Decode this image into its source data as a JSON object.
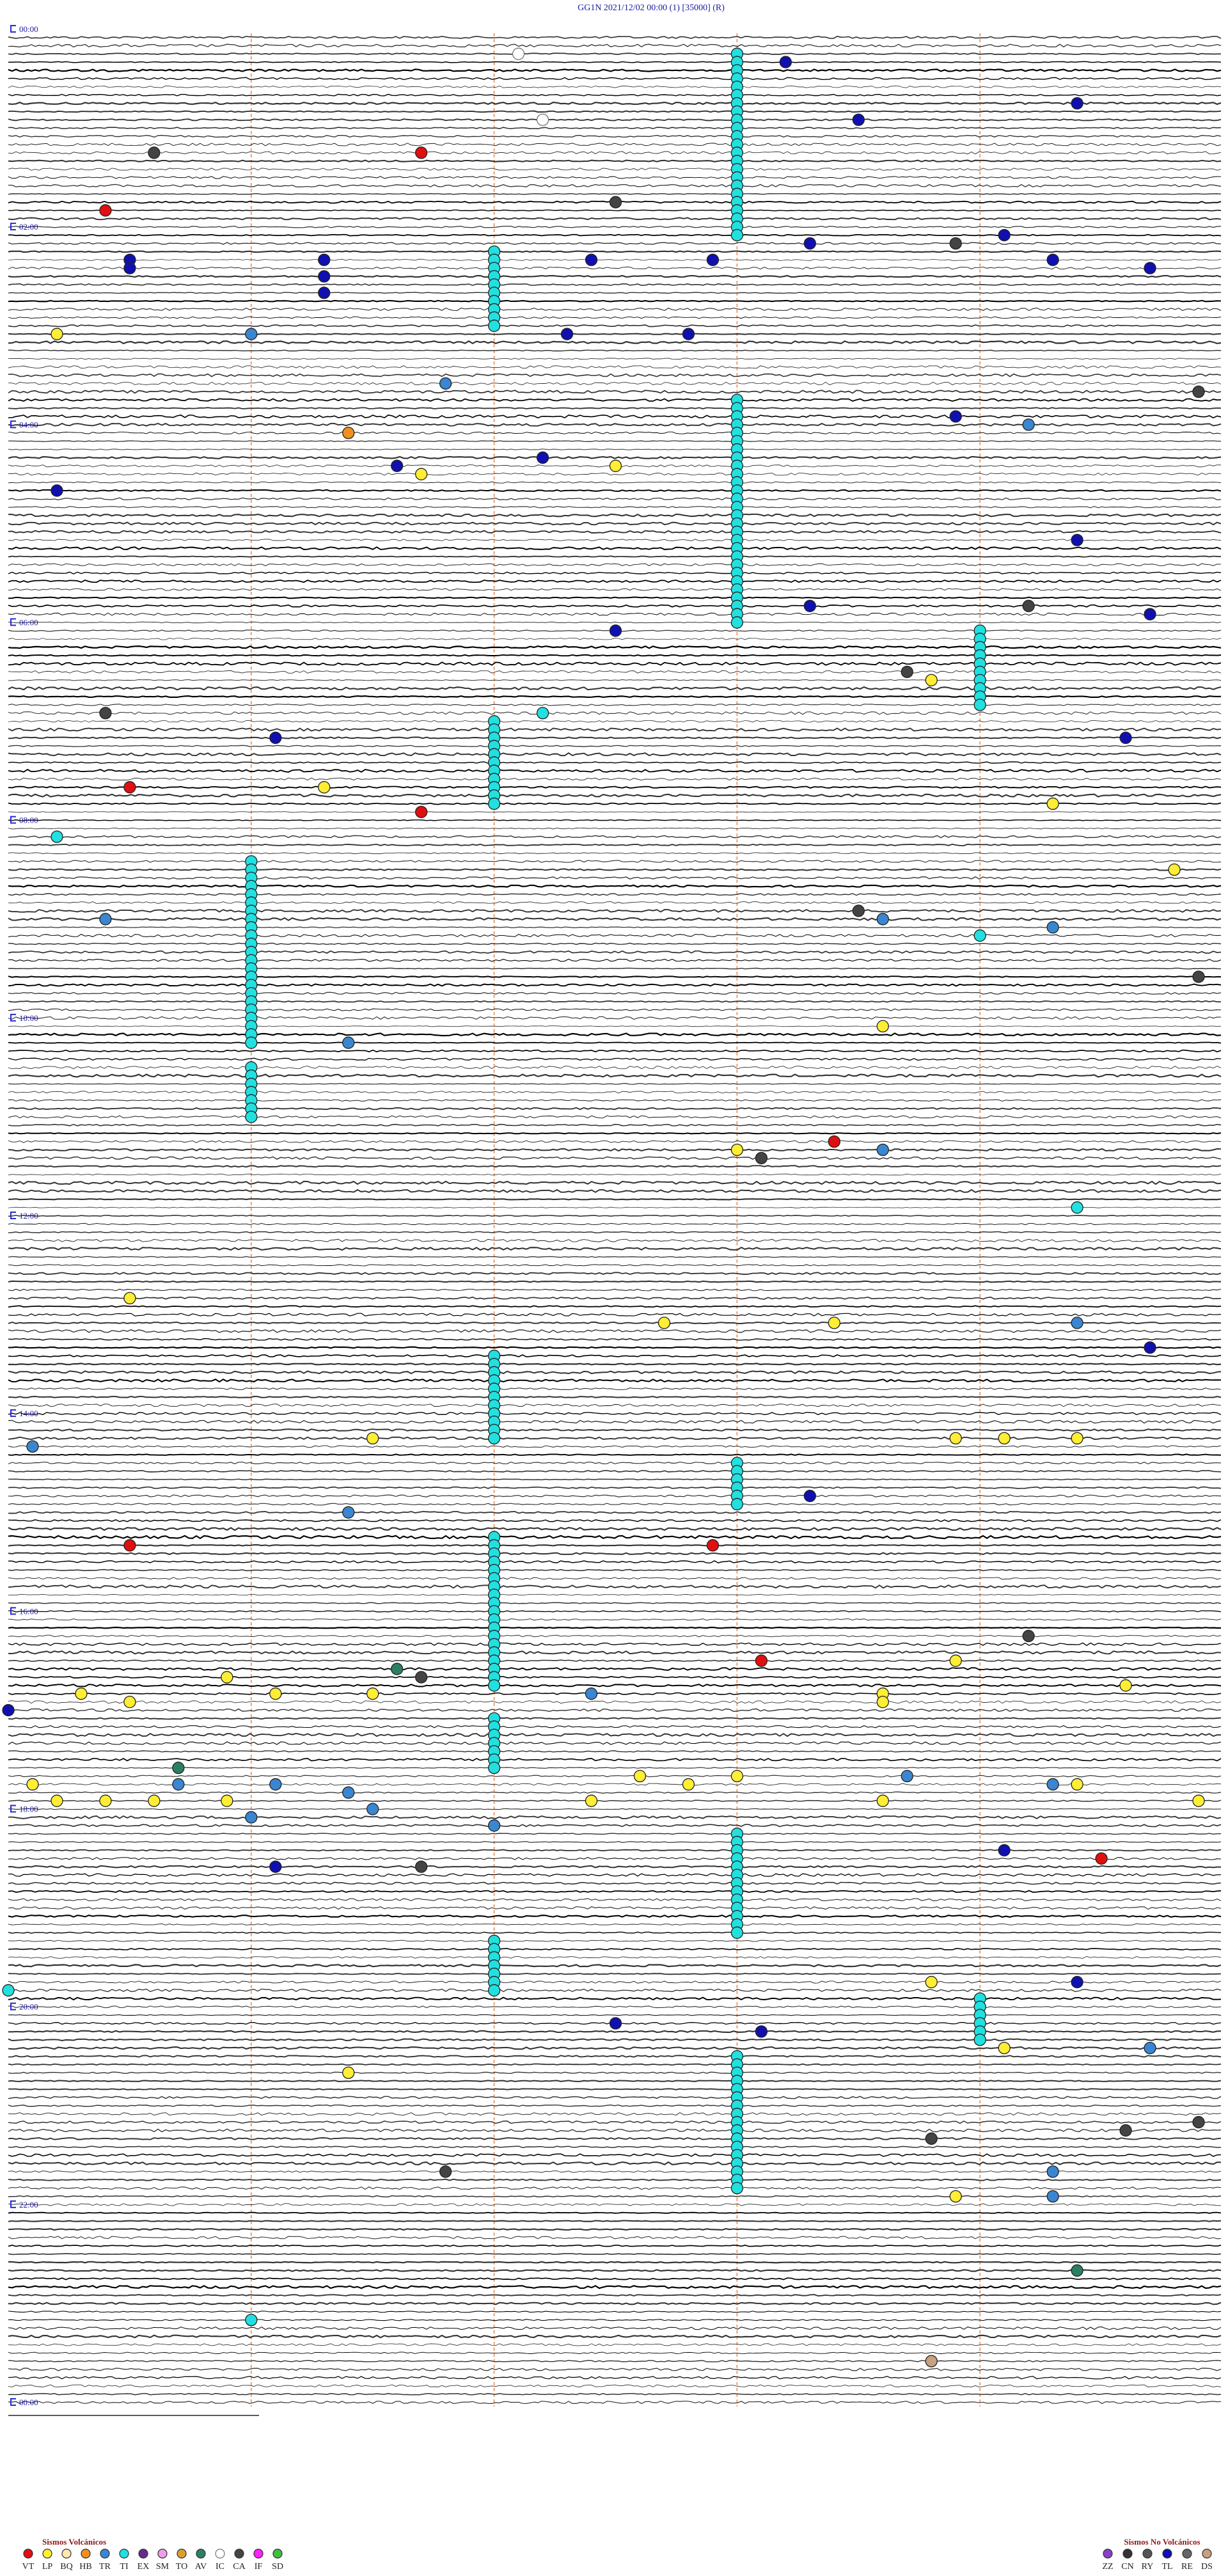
{
  "header": {
    "title": "GG1N     2021/12/02 00:00     (1)     [35000]     (R)"
  },
  "hour_labels": [
    "00:00",
    "02:00",
    "04:00",
    "06:00",
    "08:00",
    "10:00",
    "12:00",
    "14:00",
    "16:00",
    "18:00",
    "20:00",
    "22:00",
    "00:00"
  ],
  "legend_volcanic": {
    "title": "Sismos Volcánicos",
    "items": [
      {
        "code": "VT",
        "color": "#e01010"
      },
      {
        "code": "LP",
        "color": "#ffee33"
      },
      {
        "code": "BQ",
        "color": "#ffe7b0"
      },
      {
        "code": "HB",
        "color": "#f09020"
      },
      {
        "code": "TR",
        "color": "#3a86d0"
      },
      {
        "code": "TI",
        "color": "#22e0e0"
      },
      {
        "code": "EX",
        "color": "#6a2a8a"
      },
      {
        "code": "SM",
        "color": "#e8a0e8"
      },
      {
        "code": "TO",
        "color": "#d8a030"
      },
      {
        "code": "AV",
        "color": "#2a8060"
      },
      {
        "code": "IC",
        "color": "#ffffff"
      },
      {
        "code": "CA",
        "color": "#444444"
      },
      {
        "code": "IF",
        "color": "#ff20ff"
      },
      {
        "code": "SD",
        "color": "#40c040"
      }
    ]
  },
  "legend_non_volcanic": {
    "title": "Sismos No Volcánicos",
    "items": [
      {
        "code": "ZZ",
        "color": "#8a40c8"
      },
      {
        "code": "CN",
        "color": "#333333"
      },
      {
        "code": "RY",
        "color": "#555555"
      },
      {
        "code": "TL",
        "color": "#1010b0"
      },
      {
        "code": "RE",
        "color": "#666666"
      },
      {
        "code": "DS",
        "color": "#c8a080"
      }
    ]
  },
  "clusters": [
    {
      "type": "TI",
      "minute": 13.0,
      "rows": 23
    },
    {
      "type": "TI",
      "minute": 132.0,
      "rows": 10
    },
    {
      "type": "TI",
      "minute": 223.0,
      "rows": 28
    },
    {
      "type": "TI",
      "minute": 364.0,
      "rows": 10
    },
    {
      "type": "TI",
      "minute": 417.0,
      "rows": 11
    },
    {
      "type": "TI",
      "minute": 501.0,
      "rows": 23
    },
    {
      "type": "TI",
      "minute": 626.0,
      "rows": 7
    },
    {
      "type": "TI",
      "minute": 802.0,
      "rows": 11
    },
    {
      "type": "TI",
      "minute": 868.0,
      "rows": 6
    },
    {
      "type": "TI",
      "minute": 912.0,
      "rows": 19
    },
    {
      "type": "TI",
      "minute": 1022.0,
      "rows": 7
    },
    {
      "type": "TI",
      "minute": 1093.0,
      "rows": 13
    },
    {
      "type": "TI",
      "minute": 1157.0,
      "rows": 7
    },
    {
      "type": "TI",
      "minute": 1194.0,
      "rows": 6
    },
    {
      "type": "TI",
      "minute": 1228.0,
      "rows": 17
    }
  ],
  "events": [
    {
      "type": "TL",
      "minute": 18.2
    },
    {
      "type": "TL",
      "minute": 53.5
    },
    {
      "type": "TL",
      "minute": 44.4
    },
    {
      "type": "VT",
      "minute": 71.7
    },
    {
      "type": "CA",
      "minute": 70.6
    },
    {
      "type": "IC",
      "minute": 12.1
    },
    {
      "type": "IC",
      "minute": 52.2
    },
    {
      "type": "VT",
      "minute": 105.4
    },
    {
      "type": "CA",
      "minute": 102.5
    },
    {
      "type": "TL",
      "minute": 124.1
    },
    {
      "type": "TL",
      "minute": 135.5
    },
    {
      "type": "TL",
      "minute": 136.3
    },
    {
      "type": "TL",
      "minute": 137.4
    },
    {
      "type": "TL",
      "minute": 137.9
    },
    {
      "type": "TL",
      "minute": 128.3
    },
    {
      "type": "TL",
      "minute": 139.3
    },
    {
      "type": "TL",
      "minute": 144.7
    },
    {
      "type": "TL",
      "minute": 140.5
    },
    {
      "type": "TL",
      "minute": 146.3
    },
    {
      "type": "TL",
      "minute": 156.3
    },
    {
      "type": "CA",
      "minute": 128.9
    },
    {
      "type": "LP",
      "minute": 180.2
    },
    {
      "type": "TR",
      "minute": 181.0
    },
    {
      "type": "TL",
      "minute": 182.3
    },
    {
      "type": "TL",
      "minute": 182.8
    },
    {
      "type": "TR",
      "minute": 211.8
    },
    {
      "type": "CA",
      "minute": 219.9
    },
    {
      "type": "TL",
      "minute": 233.9
    },
    {
      "type": "TR",
      "minute": 239.2
    },
    {
      "type": "HB",
      "minute": 241.4
    },
    {
      "type": "TL",
      "minute": 257.2
    },
    {
      "type": "TL",
      "minute": 261.6
    },
    {
      "type": "LP",
      "minute": 266.7
    },
    {
      "type": "LP",
      "minute": 262.5
    },
    {
      "type": "TL",
      "minute": 275.2
    },
    {
      "type": "TL",
      "minute": 309.4
    },
    {
      "type": "TL",
      "minute": 348.3
    },
    {
      "type": "CA",
      "minute": 349.2
    },
    {
      "type": "TL",
      "minute": 354.7
    },
    {
      "type": "TL",
      "minute": 362.5
    },
    {
      "type": "CA",
      "minute": 388.7
    },
    {
      "type": "LP",
      "minute": 393.8
    },
    {
      "type": "TI",
      "minute": 412.2
    },
    {
      "type": "CA",
      "minute": 410.4
    },
    {
      "type": "TL",
      "minute": 426.1
    },
    {
      "type": "TL",
      "minute": 429.6
    },
    {
      "type": "VT",
      "minute": 455.5
    },
    {
      "type": "LP",
      "minute": 456.3
    },
    {
      "type": "VT",
      "minute": 471.7
    },
    {
      "type": "LP",
      "minute": 469.3
    },
    {
      "type": "TI",
      "minute": 485.2
    },
    {
      "type": "LP",
      "minute": 509.8
    },
    {
      "type": "CA",
      "minute": 533.5
    },
    {
      "type": "TR",
      "minute": 538.6
    },
    {
      "type": "TR",
      "minute": 535.4
    },
    {
      "type": "TR",
      "minute": 544.3
    },
    {
      "type": "TI",
      "minute": 549.0
    },
    {
      "type": "CA",
      "minute": 574.9
    },
    {
      "type": "LP",
      "minute": 603.6
    },
    {
      "type": "TR",
      "minute": 611.4
    },
    {
      "type": "VT",
      "minute": 673.4
    },
    {
      "type": "LP",
      "minute": 678.0
    },
    {
      "type": "CA",
      "minute": 683.1
    },
    {
      "type": "TR",
      "minute": 678.6
    },
    {
      "type": "TI",
      "minute": 714.4
    },
    {
      "type": "LP",
      "minute": 765.5
    },
    {
      "type": "LP",
      "minute": 782.7
    },
    {
      "type": "LP",
      "minute": 783.4
    },
    {
      "type": "TR",
      "minute": 784.4
    },
    {
      "type": "TL",
      "minute": 799.7
    },
    {
      "type": "TR",
      "minute": 855.1
    },
    {
      "type": "LP",
      "minute": 851.5
    },
    {
      "type": "LP",
      "minute": 853.9
    },
    {
      "type": "LP",
      "minute": 854.1
    },
    {
      "type": "LP",
      "minute": 854.4
    },
    {
      "type": "TR",
      "minute": 896.4
    },
    {
      "type": "TL",
      "minute": 888.3
    },
    {
      "type": "VT",
      "minute": 915.5
    },
    {
      "type": "VT",
      "minute": 917.9
    },
    {
      "type": "CA",
      "minute": 974.2
    },
    {
      "type": "VT",
      "minute": 988.1
    },
    {
      "type": "LP",
      "minute": 988.9
    },
    {
      "type": "AV",
      "minute": 991.6
    },
    {
      "type": "CA",
      "minute": 996.7
    },
    {
      "type": "LP",
      "minute": 995.9
    },
    {
      "type": "LP",
      "minute": 1004.6
    },
    {
      "type": "LP",
      "minute": 1005.3
    },
    {
      "type": "LP",
      "minute": 1006.1
    },
    {
      "type": "LP",
      "minute": 1006.5
    },
    {
      "type": "TR",
      "minute": 1007.4
    },
    {
      "type": "LP",
      "minute": 1008.6
    },
    {
      "type": "LP",
      "minute": 1010.5
    },
    {
      "type": "LP",
      "minute": 1013.6
    },
    {
      "type": "TL",
      "minute": 1015.0
    },
    {
      "type": "AV",
      "minute": 1050.7
    },
    {
      "type": "TR",
      "minute": 1060.7
    },
    {
      "type": "LP",
      "minute": 1060.1
    },
    {
      "type": "LP",
      "minute": 1057.6
    },
    {
      "type": "LP",
      "minute": 1062.8
    },
    {
      "type": "LP",
      "minute": 1058.0
    },
    {
      "type": "LP",
      "minute": 1064.4
    },
    {
      "type": "TR",
      "minute": 1058.7
    },
    {
      "type": "TR",
      "minute": 1064.3
    },
    {
      "type": "TR",
      "minute": 1066.4
    },
    {
      "type": "TR",
      "minute": 1061.1
    },
    {
      "type": "LP",
      "minute": 1070.2
    },
    {
      "type": "LP",
      "minute": 1070.4
    },
    {
      "type": "LP",
      "minute": 1070.6
    },
    {
      "type": "LP",
      "minute": 1070.9
    },
    {
      "type": "LP",
      "minute": 1072.4
    },
    {
      "type": "LP",
      "minute": 1073.6
    },
    {
      "type": "LP",
      "minute": 1074.9
    },
    {
      "type": "TR",
      "minute": 1076.5
    },
    {
      "type": "TR",
      "minute": 1081.0
    },
    {
      "type": "TR",
      "minute": 1087.0
    },
    {
      "type": "TL",
      "minute": 1104.1
    },
    {
      "type": "VT",
      "minute": 1109.5
    },
    {
      "type": "TL",
      "minute": 1111.1
    },
    {
      "type": "CA",
      "minute": 1111.7
    },
    {
      "type": "LP",
      "minute": 1183.8
    },
    {
      "type": "TL",
      "minute": 1184.4
    },
    {
      "type": "TI",
      "minute": 1185.0
    },
    {
      "type": "TL",
      "minute": 1207.5
    },
    {
      "type": "TL",
      "minute": 1213.1
    },
    {
      "type": "LP",
      "minute": 1224.1
    },
    {
      "type": "TR",
      "minute": 1224.7
    },
    {
      "type": "LP",
      "minute": 1236.4
    },
    {
      "type": "CA",
      "minute": 1269.9
    },
    {
      "type": "CA",
      "minute": 1274.6
    },
    {
      "type": "CA",
      "minute": 1278.8
    },
    {
      "type": "CA",
      "minute": 1296.8
    },
    {
      "type": "TR",
      "minute": 1299.3
    },
    {
      "type": "TR",
      "minute": 1314.3
    },
    {
      "type": "LP",
      "minute": 1313.9
    },
    {
      "type": "AV",
      "minute": 1359.4
    },
    {
      "type": "TI",
      "minute": 1386.0
    },
    {
      "type": "DS",
      "minute": 1413.8
    }
  ]
}
